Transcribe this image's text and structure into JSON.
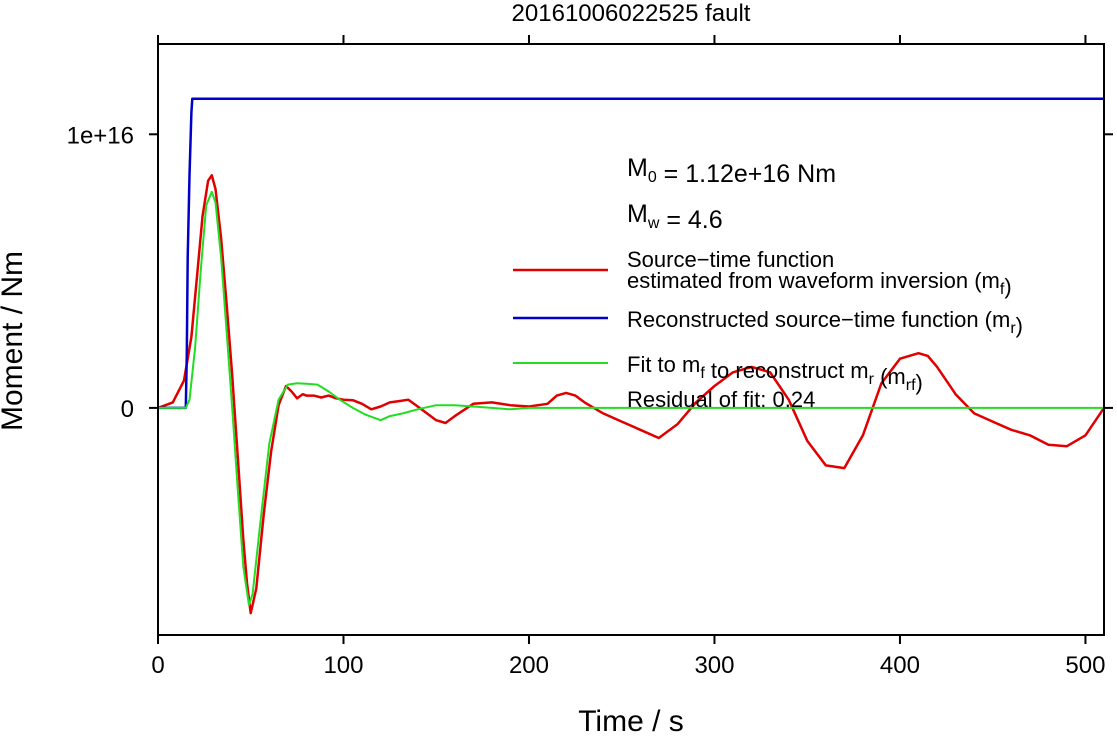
{
  "chart_data": {
    "type": "line",
    "title": "20161006022525 fault",
    "xlabel": "Time / s",
    "ylabel": "Moment / Nm",
    "xlim": [
      0,
      510
    ],
    "ylim": [
      -8300000000000000.0,
      1.33e+16
    ],
    "x_ticks": [
      0,
      100,
      200,
      300,
      400,
      500
    ],
    "x_tick_labels": [
      "0",
      "100",
      "200",
      "300",
      "400",
      "500"
    ],
    "y_ticks": [
      0,
      1e+16
    ],
    "y_tick_labels": [
      "0",
      "1e+16"
    ],
    "grid": false,
    "legend_position": "right",
    "annotations": {
      "m0": {
        "base": "M",
        "sub": "0",
        "rest": " = 1.12e+16 Nm"
      },
      "mw": {
        "base": "M",
        "sub": "w",
        "rest": " = 4.6"
      },
      "residual": "Residual of fit: 0.24"
    },
    "series": [
      {
        "color": "#e00000",
        "legend_lines": [
          {
            "base": "Source−time function"
          },
          {
            "base": "estimated from waveform inversion (m",
            "sub": "f",
            "after": ")"
          }
        ],
        "x": [
          0,
          8,
          14,
          18,
          21,
          24,
          27,
          29,
          31,
          34,
          37,
          40,
          43,
          46,
          48,
          50,
          53,
          57,
          61,
          65,
          69,
          72,
          75,
          78,
          80,
          84,
          88,
          92,
          96,
          100,
          105,
          110,
          115,
          120,
          125,
          130,
          135,
          140,
          145,
          150,
          155,
          160,
          170,
          180,
          190,
          200,
          210,
          215,
          220,
          225,
          230,
          240,
          250,
          260,
          270,
          280,
          290,
          300,
          310,
          320,
          330,
          340,
          350,
          360,
          370,
          380,
          390,
          400,
          410,
          415,
          420,
          430,
          440,
          450,
          460,
          470,
          480,
          490,
          500,
          510
        ],
        "y": [
          0,
          200000000000000.0,
          1000000000000000.0,
          2600000000000000.0,
          4800000000000000.0,
          7000000000000000.0,
          8300000000000000.0,
          8500000000000000.0,
          8000000000000000.0,
          6200000000000000.0,
          3800000000000000.0,
          1200000000000000.0,
          -1800000000000000.0,
          -4800000000000000.0,
          -6400000000000000.0,
          -7500000000000000.0,
          -6600000000000000.0,
          -3900000000000000.0,
          -1600000000000000.0,
          100000000000000.0,
          800000000000000.0,
          600000000000000.0,
          350000000000000.0,
          500000000000000.0,
          450000000000000.0,
          450000000000000.0,
          380000000000000.0,
          450000000000000.0,
          350000000000000.0,
          300000000000000.0,
          280000000000000.0,
          150000000000000.0,
          -50000000000000.0,
          50000000000000.0,
          200000000000000.0,
          250000000000000.0,
          300000000000000.0,
          50000000000000.0,
          -200000000000000.0,
          -450000000000000.0,
          -550000000000000.0,
          -300000000000000.0,
          150000000000000.0,
          200000000000000.0,
          100000000000000.0,
          50000000000000.0,
          150000000000000.0,
          450000000000000.0,
          550000000000000.0,
          450000000000000.0,
          200000000000000.0,
          -200000000000000.0,
          -500000000000000.0,
          -800000000000000.0,
          -1100000000000000.0,
          -600000000000000.0,
          200000000000000.0,
          800000000000000.0,
          1300000000000000.0,
          1500000000000000.0,
          1300000000000000.0,
          300000000000000.0,
          -1200000000000000.0,
          -2100000000000000.0,
          -2200000000000000.0,
          -1000000000000000.0,
          900000000000000.0,
          1800000000000000.0,
          2000000000000000.0,
          1900000000000000.0,
          1500000000000000.0,
          500000000000000.0,
          -200000000000000.0,
          -500000000000000.0,
          -800000000000000.0,
          -1000000000000000.0,
          -1350000000000000.0,
          -1400000000000000.0,
          -1000000000000000.0,
          0.0
        ]
      },
      {
        "color": "#0000c8",
        "legend_lines": [
          {
            "base": "Reconstructed source−time function (m",
            "sub": "r",
            "after": ")"
          }
        ],
        "x": [
          0,
          15,
          15.5,
          16,
          17,
          18,
          18.5,
          19,
          510
        ],
        "y": [
          0,
          0,
          2000000000000000.0,
          5500000000000000.0,
          8500000000000000.0,
          1.08e+16,
          1.13e+16,
          1.13e+16,
          1.13e+16
        ]
      },
      {
        "color": "#22dd22",
        "legend_lines": [
          {
            "base": "Fit to m",
            "sub": "f",
            "after": " to reconstruct m",
            "sub2": "r",
            "after2": " (m",
            "sub3": "rf",
            "after3": ")"
          }
        ],
        "x": [
          0,
          15,
          17,
          20,
          23,
          26,
          29,
          31,
          34,
          37,
          40,
          43,
          46,
          49,
          51,
          55,
          60,
          65,
          70,
          75,
          80,
          86,
          92,
          98,
          105,
          112,
          120,
          125,
          132,
          140,
          150,
          160,
          170,
          180,
          190,
          200,
          220,
          240,
          260,
          300,
          400,
          510
        ],
        "y": [
          0,
          0,
          300000000000000.0,
          2200000000000000.0,
          5000000000000000.0,
          7400000000000000.0,
          7900000000000000.0,
          7500000000000000.0,
          5500000000000000.0,
          2800000000000000.0,
          0.0,
          -3000000000000000.0,
          -5800000000000000.0,
          -7200000000000000.0,
          -6800000000000000.0,
          -4300000000000000.0,
          -1300000000000000.0,
          300000000000000.0,
          850000000000000.0,
          900000000000000.0,
          880000000000000.0,
          850000000000000.0,
          600000000000000.0,
          300000000000000.0,
          0.0,
          -250000000000000.0,
          -450000000000000.0,
          -300000000000000.0,
          -200000000000000.0,
          -50000000000000.0,
          100000000000000.0,
          100000000000000.0,
          50000000000000.0,
          0.0,
          -50000000000000.0,
          0.0,
          0,
          0,
          0,
          0,
          0,
          0
        ]
      }
    ]
  }
}
